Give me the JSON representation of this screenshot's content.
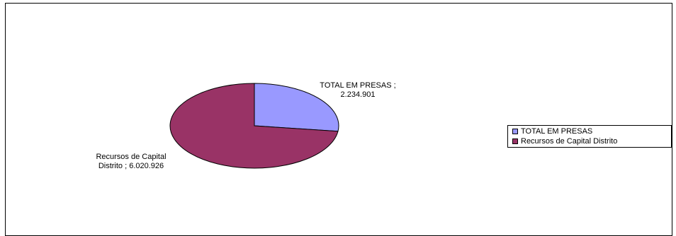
{
  "chart_data": {
    "type": "pie",
    "categories": [
      "TOTAL EM PRESAS",
      "Recursos de Capital Distrito"
    ],
    "values": [
      2234901,
      6020926
    ],
    "value_labels": [
      "2.234.901",
      "6.020.926"
    ],
    "colors": [
      "#9999ff",
      "#993366"
    ],
    "data_labels": [
      {
        "lines": [
          "TOTAL EM PRESAS ;",
          "2.234.901"
        ]
      },
      {
        "lines": [
          "Recursos de Capital",
          "Distrito  ; 6.020.926"
        ]
      }
    ],
    "legend": {
      "position": "right",
      "entries": [
        "TOTAL EM PRESAS",
        "Recursos de Capital Distrito"
      ]
    },
    "start_angle_deg": 0,
    "direction": "clockwise"
  }
}
